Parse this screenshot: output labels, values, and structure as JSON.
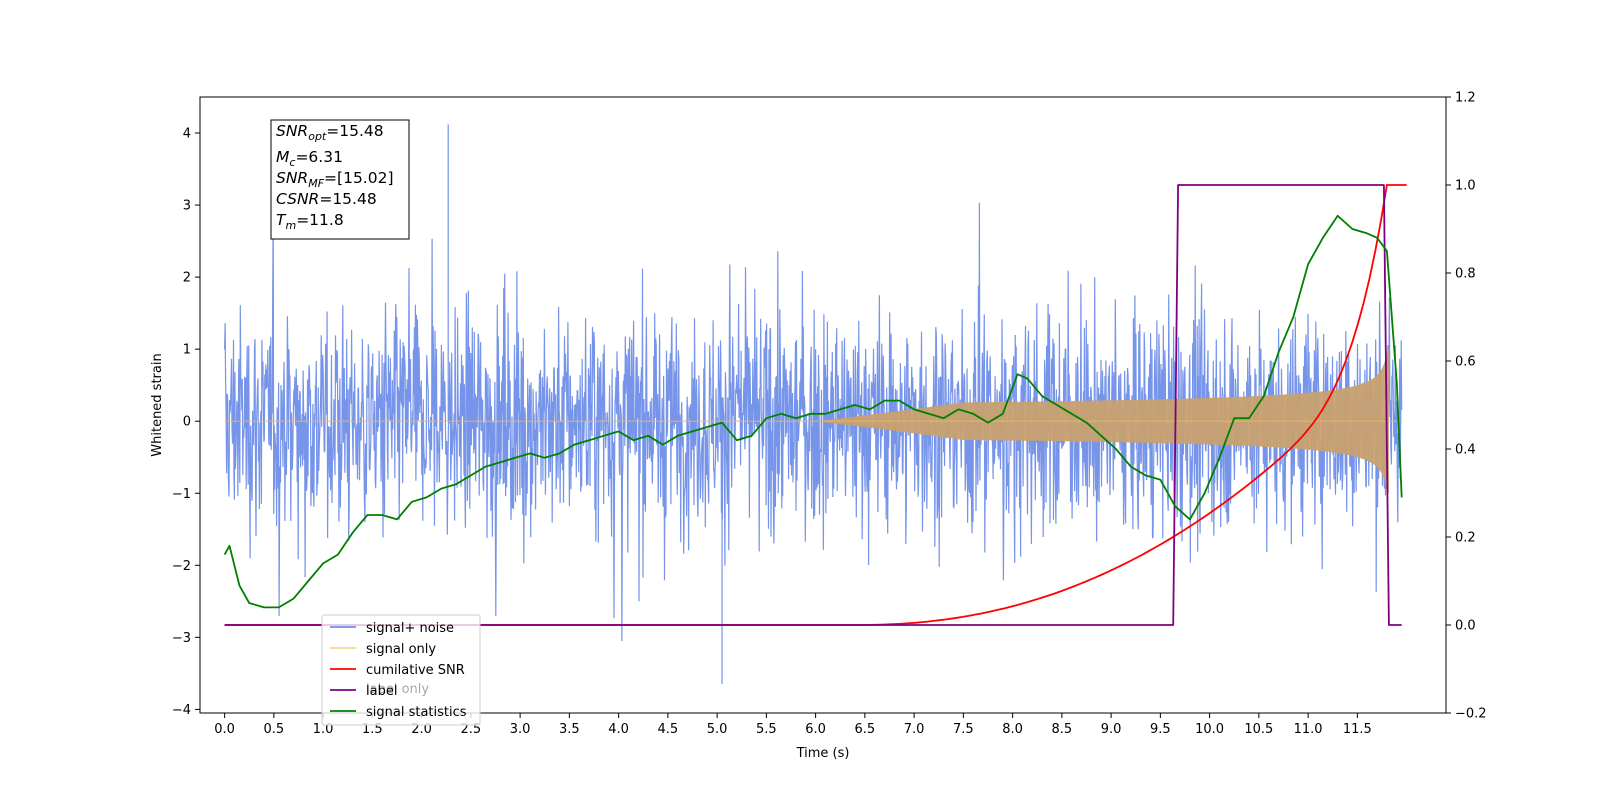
{
  "chart_data": {
    "type": "line",
    "xlabel": "Time (s)",
    "ylabel_left": "Whitened strain",
    "ylabel_right": "",
    "xlim": [
      -0.25,
      12.4
    ],
    "ylim_left": [
      -4.05,
      4.5
    ],
    "ylim_right": [
      -0.2,
      1.2
    ],
    "x_ticks": [
      "0.0",
      "0.5",
      "1.0",
      "1.5",
      "2.0",
      "2.5",
      "3.0",
      "3.5",
      "4.0",
      "4.5",
      "5.0",
      "5.5",
      "6.0",
      "6.5",
      "7.0",
      "7.5",
      "8.0",
      "8.5",
      "9.0",
      "9.5",
      "10.0",
      "10.5",
      "11.0",
      "11.5"
    ],
    "y_ticks_left": [
      "−4",
      "−3",
      "−2",
      "−1",
      "0",
      "1",
      "2",
      "3",
      "4"
    ],
    "y_ticks_right": [
      "−0.2",
      "0.0",
      "0.2",
      "0.4",
      "0.6",
      "0.8",
      "1.0",
      "1.2"
    ],
    "grid": false,
    "legend_position": "lower-left",
    "info_box": {
      "snr_opt": {
        "base": "SNR",
        "sub": "opt",
        "value": "=15.48"
      },
      "mc": {
        "base": "M",
        "sub": "c",
        "value": "=6.31"
      },
      "snr_mf": {
        "base": "SNR",
        "sub": "MF",
        "value": "=[15.02]"
      },
      "csnr": {
        "base": "CSNR",
        "sub": "",
        "value": "=15.48"
      },
      "tm": {
        "base": "T",
        "sub": "m",
        "value": "=11.8"
      }
    },
    "series": [
      {
        "name": "signal+ noise",
        "color": "#6f8ee8",
        "axis": "left",
        "noise_band": [
          -1.6,
          2.0
        ],
        "peak_max": 4.12,
        "peak_min": -3.65
      },
      {
        "name": "signal only",
        "color": "#f5b84a",
        "axis": "left",
        "envelope": {
          "t_start": 6.0,
          "t_merge": 11.8,
          "amp_at_merge": 1.0
        }
      },
      {
        "name": "cumilative SNR",
        "color": "#ff0000",
        "axis": "right",
        "x": [
          0,
          6.5,
          7.0,
          7.5,
          8.0,
          8.5,
          9.0,
          9.5,
          10.0,
          10.5,
          11.0,
          11.5,
          11.7,
          11.8,
          12.0
        ],
        "y": [
          0,
          0,
          0.01,
          0.03,
          0.1,
          0.17,
          0.23,
          0.29,
          0.38,
          0.47,
          0.6,
          0.8,
          0.9,
          1.0,
          1.0
        ]
      },
      {
        "name": "label",
        "color": "#7f007f",
        "axis": "right",
        "x": [
          0,
          9.63,
          9.68,
          11.77,
          11.82,
          11.95
        ],
        "y": [
          0,
          0,
          1.0,
          1.0,
          0,
          0
        ]
      },
      {
        "name": "label only",
        "color": "#7f007f",
        "axis": "right",
        "hidden": true
      },
      {
        "name": "signal statistics",
        "color": "#008000",
        "axis": "right",
        "x": [
          0,
          0.05,
          0.15,
          0.25,
          0.4,
          0.55,
          0.7,
          0.85,
          1.0,
          1.15,
          1.3,
          1.45,
          1.6,
          1.75,
          1.9,
          2.05,
          2.2,
          2.35,
          2.5,
          2.65,
          2.8,
          2.95,
          3.1,
          3.25,
          3.4,
          3.55,
          3.7,
          3.85,
          4.0,
          4.15,
          4.3,
          4.45,
          4.6,
          4.75,
          4.9,
          5.05,
          5.2,
          5.35,
          5.5,
          5.65,
          5.8,
          5.95,
          6.1,
          6.25,
          6.4,
          6.55,
          6.7,
          6.85,
          7.0,
          7.15,
          7.3,
          7.45,
          7.6,
          7.75,
          7.9,
          8.05,
          8.15,
          8.3,
          8.45,
          8.6,
          8.75,
          8.9,
          9.05,
          9.2,
          9.35,
          9.5,
          9.65,
          9.8,
          9.95,
          10.1,
          10.25,
          10.4,
          10.55,
          10.7,
          10.85,
          11.0,
          11.15,
          11.3,
          11.45,
          11.6,
          11.7,
          11.8,
          11.9,
          11.95
        ],
        "y": [
          0.16,
          0.18,
          0.09,
          0.05,
          0.04,
          0.04,
          0.06,
          0.1,
          0.14,
          0.16,
          0.21,
          0.25,
          0.25,
          0.24,
          0.28,
          0.29,
          0.31,
          0.32,
          0.34,
          0.36,
          0.37,
          0.38,
          0.39,
          0.38,
          0.39,
          0.41,
          0.42,
          0.43,
          0.44,
          0.42,
          0.43,
          0.41,
          0.43,
          0.44,
          0.45,
          0.46,
          0.42,
          0.43,
          0.47,
          0.48,
          0.47,
          0.48,
          0.48,
          0.49,
          0.5,
          0.49,
          0.51,
          0.51,
          0.49,
          0.48,
          0.47,
          0.49,
          0.48,
          0.46,
          0.48,
          0.57,
          0.56,
          0.52,
          0.5,
          0.48,
          0.46,
          0.43,
          0.4,
          0.36,
          0.34,
          0.33,
          0.27,
          0.24,
          0.3,
          0.38,
          0.47,
          0.47,
          0.52,
          0.62,
          0.7,
          0.82,
          0.88,
          0.93,
          0.9,
          0.89,
          0.88,
          0.85,
          0.55,
          0.29
        ]
      }
    ]
  }
}
